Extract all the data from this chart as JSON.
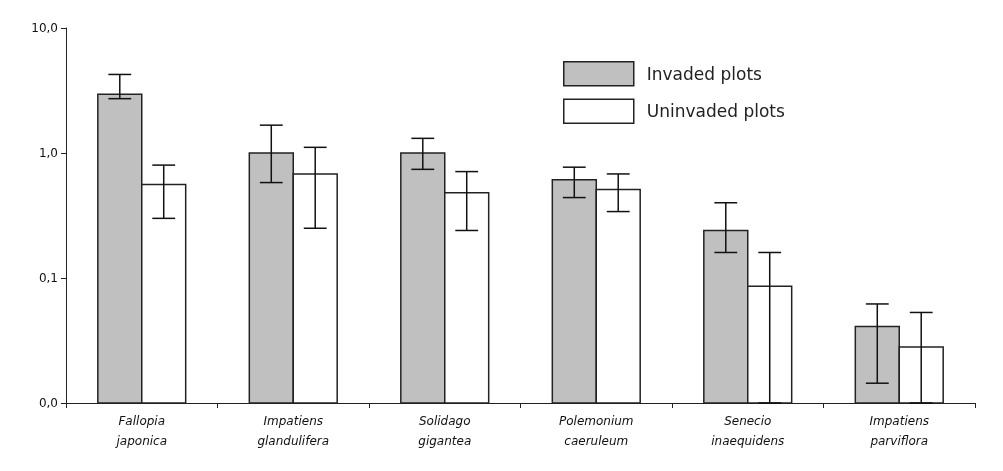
{
  "chart_data": {
    "type": "bar",
    "log": true,
    "categories": [
      "Fallopia japonica",
      "Impatiens glandulifera",
      "Solidago gigantea",
      "Polemonium caeruleum",
      "Senecio inaequidens",
      "Impatiens parviflora"
    ],
    "series": [
      {
        "name": "Invaded plots",
        "color": "#c0c0c0",
        "values": [
          2.95,
          1.0,
          1.0,
          0.61,
          0.24,
          0.041
        ],
        "errors": [
          [
            2.72,
            4.25
          ],
          [
            0.58,
            1.67
          ],
          [
            0.74,
            1.31
          ],
          [
            0.44,
            0.77
          ],
          [
            0.16,
            0.4
          ],
          [
            0.0144,
            0.062
          ]
        ]
      },
      {
        "name": "Uninvaded plots",
        "color": "#ffffff",
        "values": [
          0.56,
          0.68,
          0.48,
          0.51,
          0.086,
          0.028
        ],
        "errors": [
          [
            0.3,
            0.8
          ],
          [
            0.25,
            1.11
          ],
          [
            0.24,
            0.71
          ],
          [
            0.34,
            0.68
          ],
          [
            0.01,
            0.16
          ],
          [
            0.01,
            0.053
          ]
        ]
      }
    ],
    "ylim": [
      0.01,
      10
    ],
    "yticks": [
      {
        "value": 0.01,
        "label": "0,0"
      },
      {
        "value": 0.1,
        "label": "0,1"
      },
      {
        "value": 1,
        "label": "1,0"
      },
      {
        "value": 10,
        "label": "10,0"
      }
    ],
    "grid": false,
    "legend": "top right"
  }
}
